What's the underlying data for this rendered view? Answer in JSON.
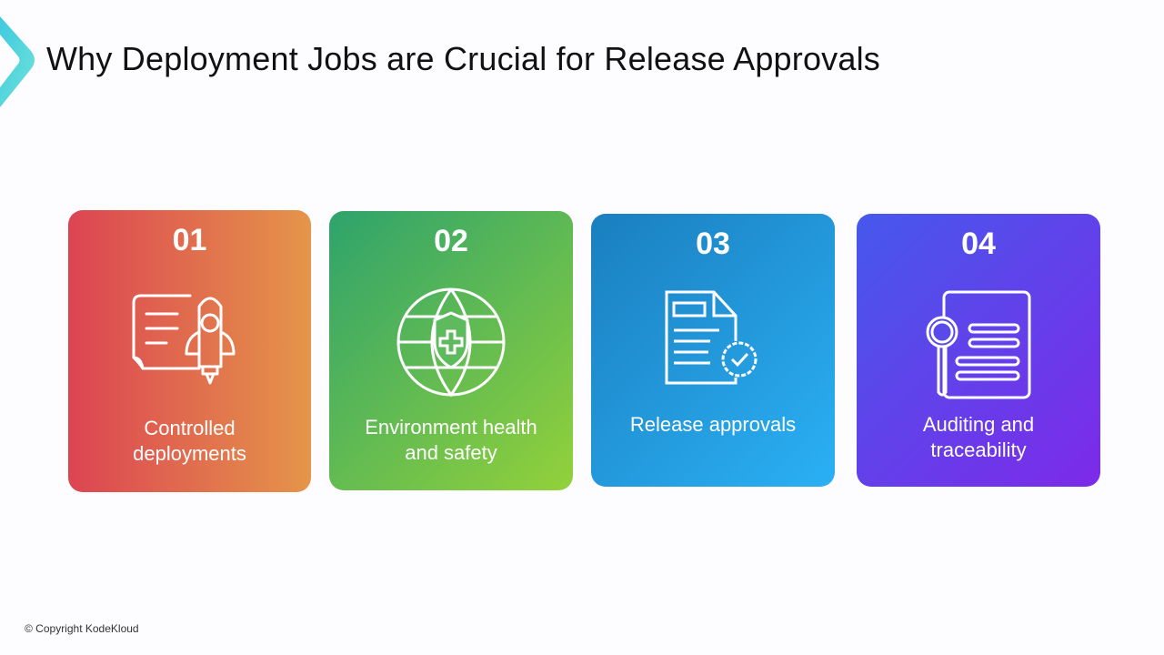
{
  "header": {
    "title": "Why Deployment Jobs are Crucial for Release Approvals",
    "logo_icon": "chevron-logo-icon"
  },
  "cards": [
    {
      "number": "01",
      "label_line1": "Controlled",
      "label_line2": "deployments",
      "icon": "rocket-document-icon",
      "gradient": [
        "#dc4452",
        "#e5954a"
      ]
    },
    {
      "number": "02",
      "label_line1": "Environment health",
      "label_line2": "and safety",
      "icon": "globe-shield-icon",
      "gradient": [
        "#2ea36c",
        "#93d13a"
      ]
    },
    {
      "number": "03",
      "label_line1": "Release approvals",
      "label_line2": "",
      "icon": "document-approval-badge-icon",
      "gradient": [
        "#1a7fbf",
        "#2bb0f5"
      ]
    },
    {
      "number": "04",
      "label_line1": "Auditing and",
      "label_line2": "traceability",
      "icon": "magnifier-document-icon",
      "gradient": [
        "#4658ec",
        "#7d2ae8"
      ]
    }
  ],
  "footer": {
    "copyright": "© Copyright KodeKloud"
  }
}
